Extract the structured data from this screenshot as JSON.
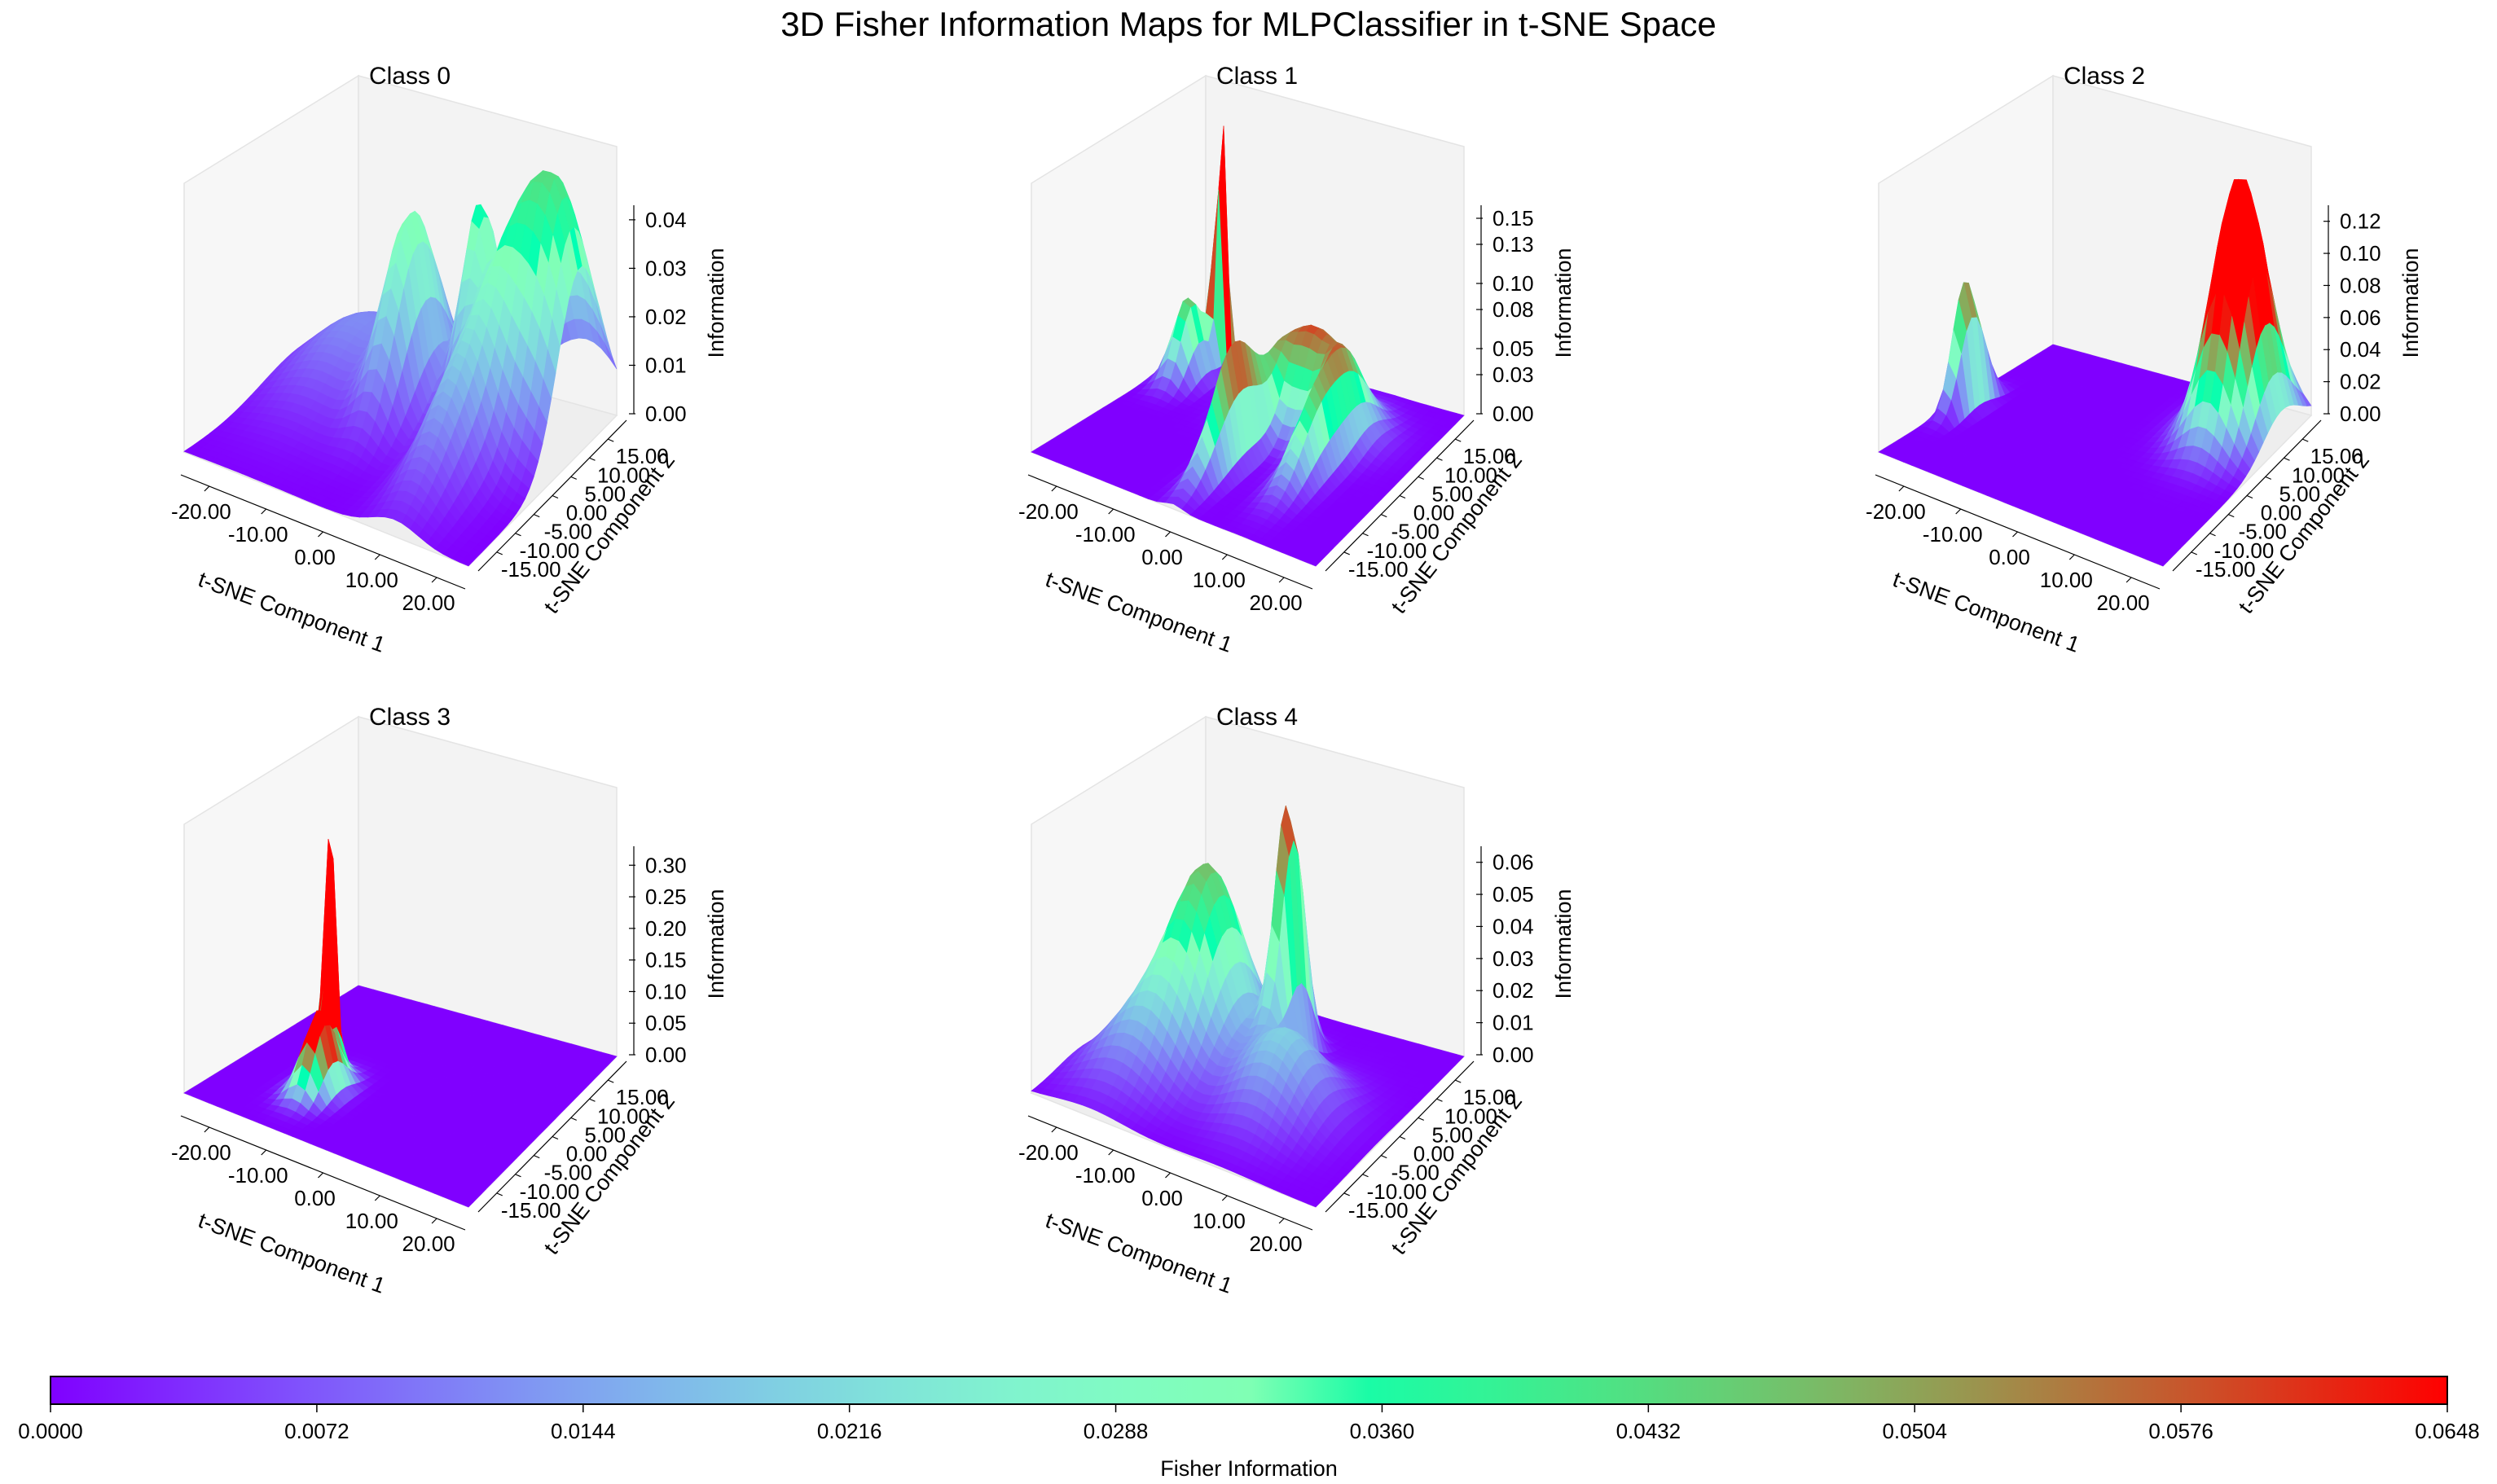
{
  "title": "3D Fisher Information Maps for MLPClassifier in t-SNE Space",
  "chart_data": [
    {
      "type": "surface3d",
      "title": "Class 0",
      "xlabel": "t-SNE Component 1",
      "ylabel": "t-SNE Component 2",
      "zlabel": "Information",
      "xlim": [
        -25,
        25
      ],
      "ylim": [
        -20,
        20
      ],
      "zlim": [
        0,
        0.043
      ],
      "x_ticks": [
        "-20.00",
        "-10.00",
        "0.00",
        "10.00",
        "20.00"
      ],
      "y_ticks": [
        "-15.00",
        "-10.00",
        "-5.00",
        "0.00",
        "5.00",
        "10.00",
        "15.00"
      ],
      "z_ticks": [
        "0.00",
        "0.01",
        "0.02",
        "0.03",
        "0.04"
      ],
      "peaks": [
        {
          "x": -3,
          "y": 5,
          "z": 0.03,
          "sx": 3,
          "sy": 6
        },
        {
          "x": 6,
          "y": 10,
          "z": 0.028,
          "sx": 2,
          "sy": 4
        },
        {
          "x": 20,
          "y": 10,
          "z": 0.042,
          "sx": 6,
          "sy": 6
        },
        {
          "x": 12,
          "y": 0,
          "z": 0.02,
          "sx": 4,
          "sy": 10
        },
        {
          "x": -15,
          "y": 8,
          "z": 0.012,
          "sx": 8,
          "sy": 10
        }
      ]
    },
    {
      "type": "surface3d",
      "title": "Class 1",
      "xlabel": "t-SNE Component 1",
      "ylabel": "t-SNE Component 2",
      "zlabel": "Information",
      "xlim": [
        -25,
        25
      ],
      "ylim": [
        -20,
        20
      ],
      "zlim": [
        0,
        0.16
      ],
      "x_ticks": [
        "-20.00",
        "-10.00",
        "0.00",
        "10.00",
        "20.00"
      ],
      "y_ticks": [
        "-15.00",
        "-10.00",
        "-5.00",
        "0.00",
        "5.00",
        "10.00",
        "15.00"
      ],
      "z_ticks": [
        "0.00",
        "0.03",
        "0.05",
        "0.08",
        "0.10",
        "0.13",
        "0.15"
      ],
      "peaks": [
        {
          "x": -18,
          "y": 15,
          "z": 0.16,
          "sx": 0.8,
          "sy": 1
        },
        {
          "x": -20,
          "y": 10,
          "z": 0.05,
          "sx": 2,
          "sy": 3
        },
        {
          "x": 5,
          "y": 8,
          "z": 0.06,
          "sx": 6,
          "sy": 4
        },
        {
          "x": 0,
          "y": -5,
          "z": 0.07,
          "sx": 1.5,
          "sy": 6
        },
        {
          "x": 12,
          "y": 0,
          "z": 0.05,
          "sx": 2,
          "sy": 6
        }
      ]
    },
    {
      "type": "surface3d",
      "title": "Class 2",
      "xlabel": "t-SNE Component 1",
      "ylabel": "t-SNE Component 2",
      "zlabel": "Information",
      "xlim": [
        -25,
        25
      ],
      "ylim": [
        -20,
        20
      ],
      "zlim": [
        0,
        0.13
      ],
      "x_ticks": [
        "-20.00",
        "-10.00",
        "0.00",
        "10.00",
        "20.00"
      ],
      "y_ticks": [
        "-15.00",
        "-10.00",
        "-5.00",
        "0.00",
        "5.00",
        "10.00",
        "15.00"
      ],
      "z_ticks": [
        "0.00",
        "0.02",
        "0.04",
        "0.06",
        "0.08",
        "0.10",
        "0.12"
      ],
      "peaks": [
        {
          "x": -23,
          "y": -2,
          "z": 0.07,
          "sx": 1,
          "sy": 3
        },
        {
          "x": 17,
          "y": 12,
          "z": 0.125,
          "sx": 4,
          "sy": 5
        }
      ]
    },
    {
      "type": "surface3d",
      "title": "Class 3",
      "xlabel": "t-SNE Component 1",
      "ylabel": "t-SNE Component 2",
      "zlabel": "Information",
      "xlim": [
        -25,
        25
      ],
      "ylim": [
        -20,
        20
      ],
      "zlim": [
        0,
        0.33
      ],
      "x_ticks": [
        "-20.00",
        "-10.00",
        "0.00",
        "10.00",
        "20.00"
      ],
      "y_ticks": [
        "-15.00",
        "-10.00",
        "-5.00",
        "0.00",
        "5.00",
        "10.00",
        "15.00"
      ],
      "z_ticks": [
        "0.00",
        "0.05",
        "0.10",
        "0.15",
        "0.20",
        "0.25",
        "0.30"
      ],
      "peaks": [
        {
          "x": -12,
          "y": -3,
          "z": 0.32,
          "sx": 0.8,
          "sy": 1
        },
        {
          "x": -10,
          "y": -8,
          "z": 0.1,
          "sx": 2,
          "sy": 3
        }
      ]
    },
    {
      "type": "surface3d",
      "title": "Class 4",
      "xlabel": "t-SNE Component 1",
      "ylabel": "t-SNE Component 2",
      "zlabel": "Information",
      "xlim": [
        -25,
        25
      ],
      "ylim": [
        -20,
        20
      ],
      "zlim": [
        0,
        0.065
      ],
      "x_ticks": [
        "-20.00",
        "-10.00",
        "0.00",
        "10.00",
        "20.00"
      ],
      "y_ticks": [
        "-15.00",
        "-10.00",
        "-5.00",
        "0.00",
        "5.00",
        "10.00",
        "15.00"
      ],
      "z_ticks": [
        "0.00",
        "0.01",
        "0.02",
        "0.03",
        "0.04",
        "0.05",
        "0.06"
      ],
      "peaks": [
        {
          "x": -10,
          "y": 2,
          "z": 0.045,
          "sx": 5,
          "sy": 6
        },
        {
          "x": 2,
          "y": 6,
          "z": 0.062,
          "sx": 1.5,
          "sy": 3
        },
        {
          "x": 8,
          "y": -4,
          "z": 0.02,
          "sx": 6,
          "sy": 6
        },
        {
          "x": -15,
          "y": -8,
          "z": 0.015,
          "sx": 6,
          "sy": 6
        }
      ]
    }
  ],
  "colorbar": {
    "label": "Fisher Information",
    "colormap": "rainbow",
    "min": 0.0,
    "max": 0.0648,
    "ticks": [
      "0.0000",
      "0.0072",
      "0.0144",
      "0.0216",
      "0.0288",
      "0.0360",
      "0.0432",
      "0.0504",
      "0.0576",
      "0.0648"
    ]
  }
}
